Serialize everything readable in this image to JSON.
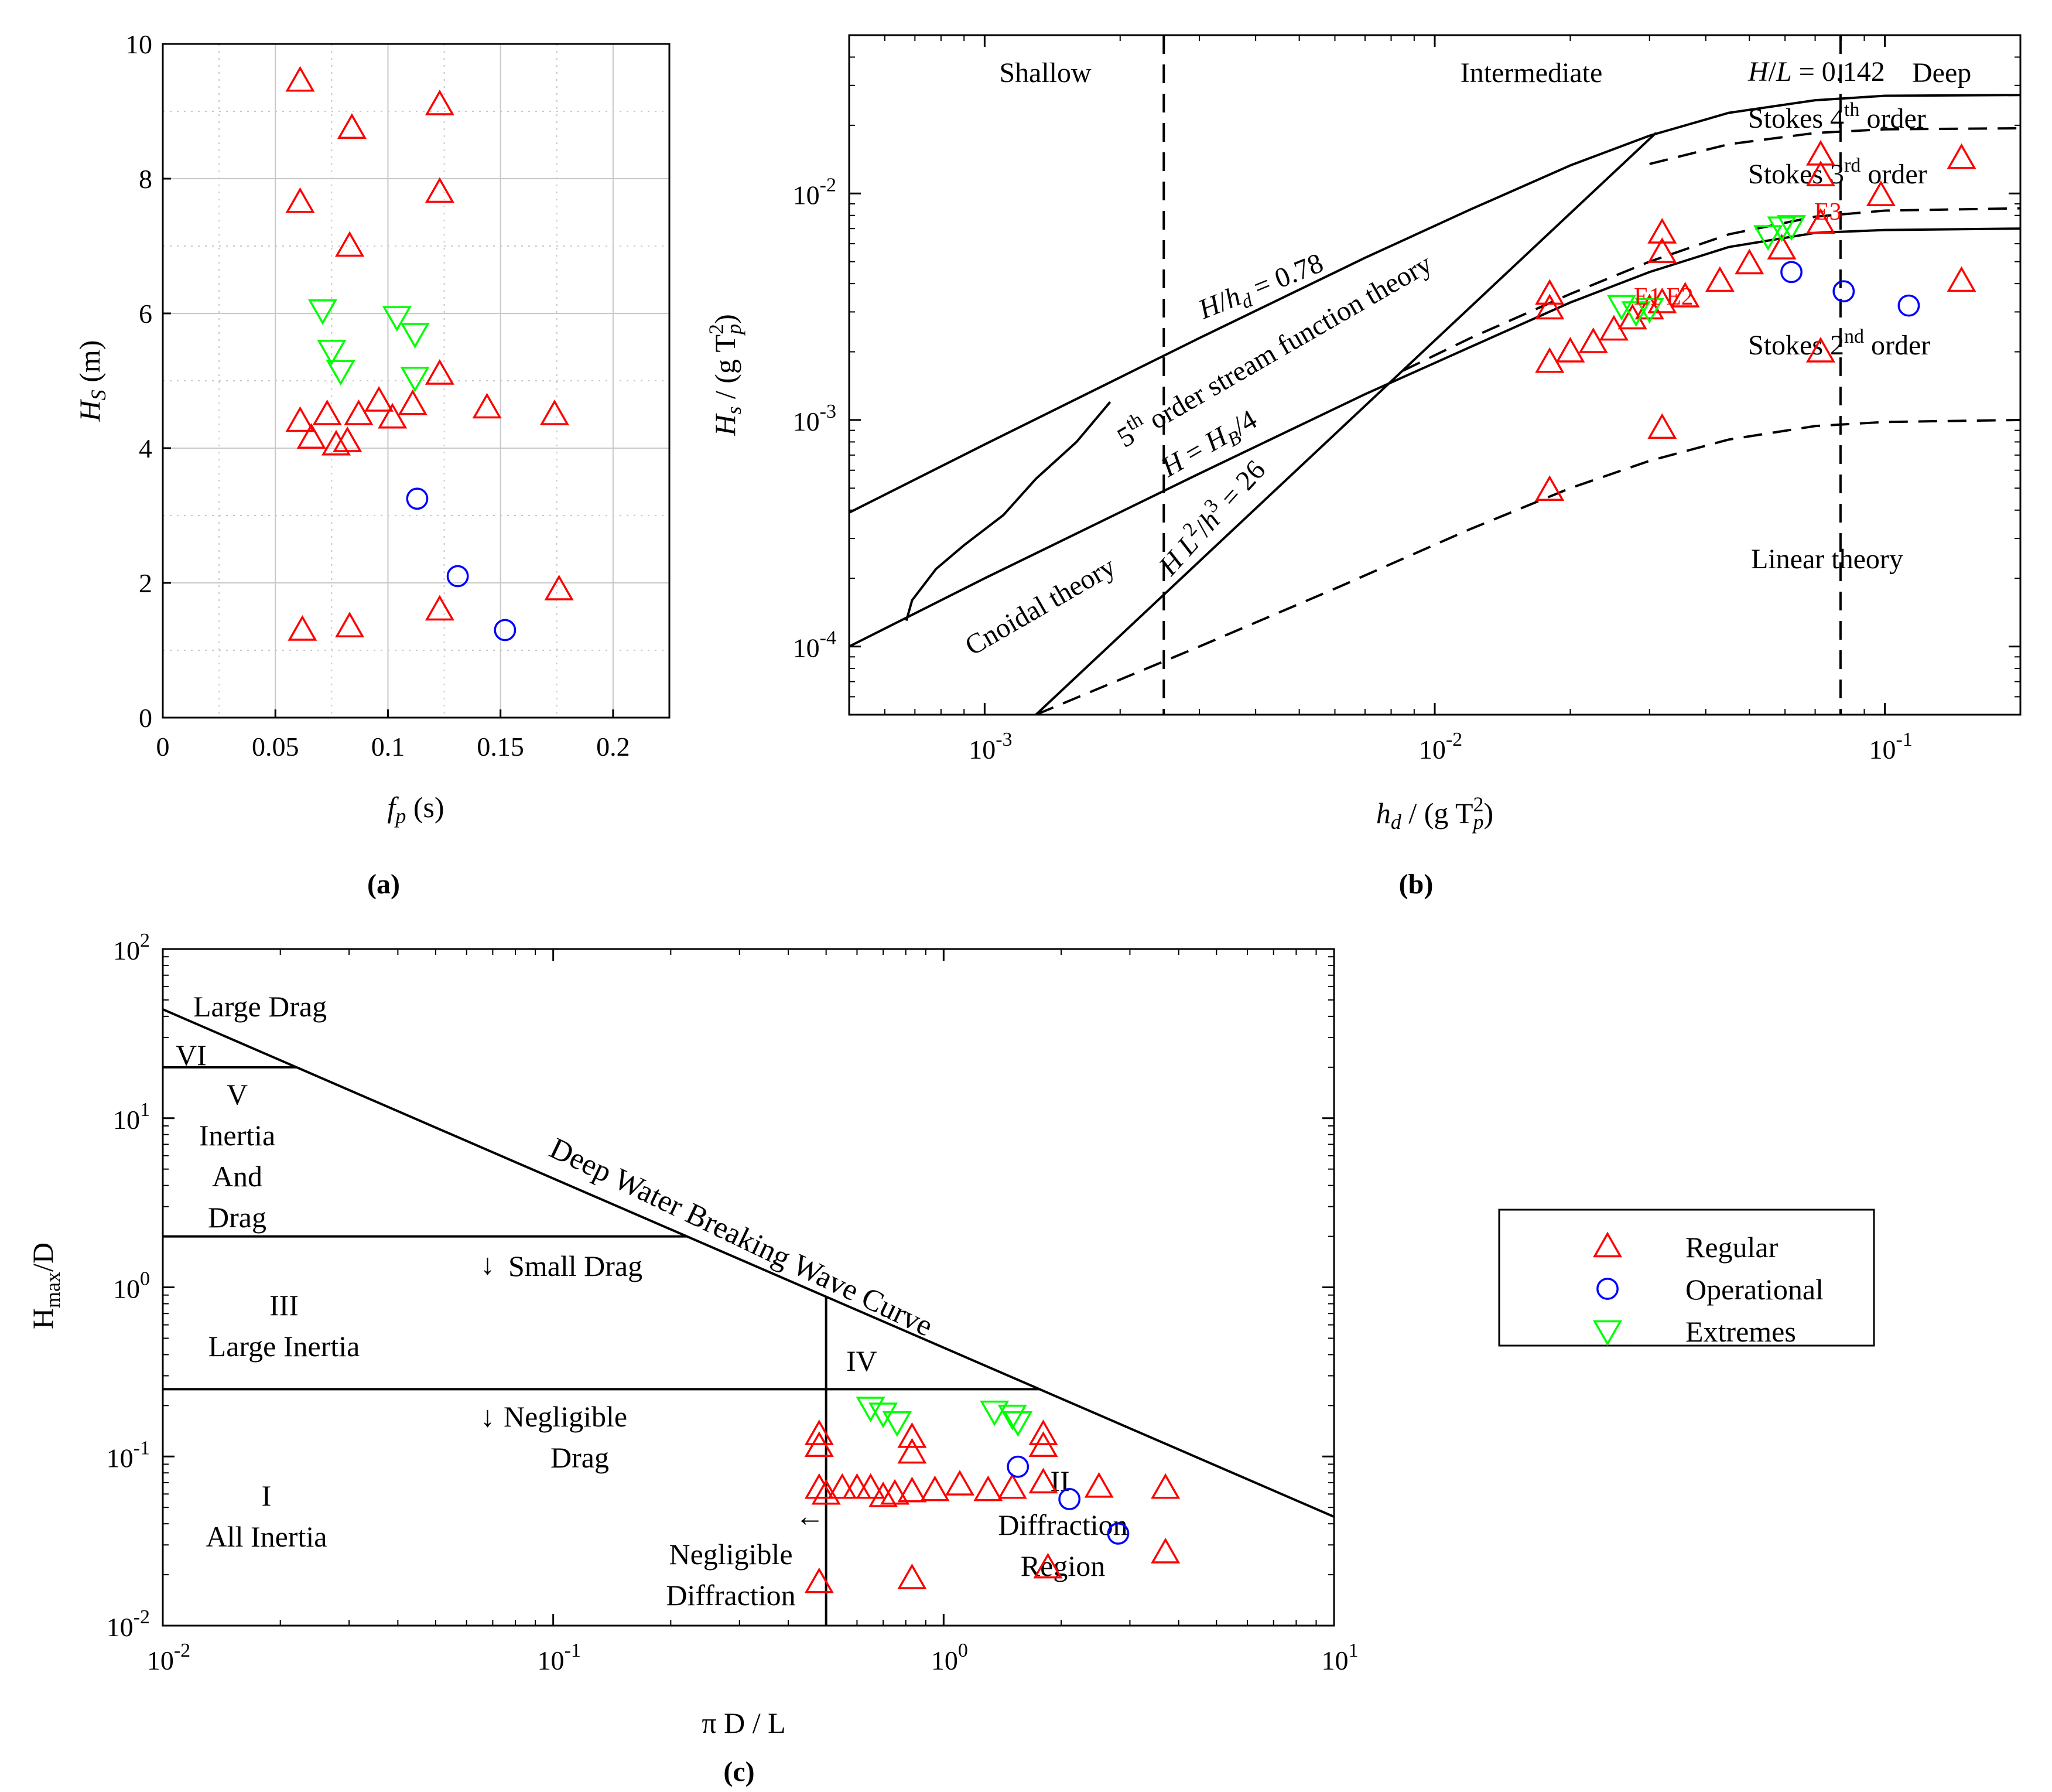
{
  "colors": {
    "regular": "#ff0000",
    "operational": "#0000ff",
    "extremes": "#00ff00",
    "axis": "#000000",
    "grid": "#c8c8c8"
  },
  "legend": {
    "placement": "right-middle",
    "entries": [
      {
        "label": "Regular",
        "marker": "triangle-up",
        "color": "#ff0000"
      },
      {
        "label": "Operational",
        "marker": "circle",
        "color": "#0000ff"
      },
      {
        "label": "Extremes",
        "marker": "triangle-down",
        "color": "#00ff00"
      }
    ]
  },
  "chart_data": [
    {
      "panel": "(a)",
      "type": "scatter",
      "xlabel": {
        "main": "f",
        "sub": "p",
        "rest": " (s)"
      },
      "ylabel": {
        "main": "H",
        "sub": "S",
        "rest": " (m)"
      },
      "xlim": [
        0,
        0.225
      ],
      "ylim": [
        0,
        10
      ],
      "xticks": [
        0,
        0.05,
        0.1,
        0.15,
        0.2
      ],
      "xtick_labels": [
        "0",
        "0.05",
        "0.1",
        "0.15",
        "0.2"
      ],
      "yticks": [
        0,
        2,
        4,
        6,
        8,
        10
      ],
      "ytick_labels": [
        "0",
        "2",
        "4",
        "6",
        "8",
        "10"
      ],
      "grid": true,
      "series": [
        {
          "name": "Regular",
          "marker": "triangle-up",
          "color": "#ff0000",
          "points": [
            [
              0.061,
              9.45
            ],
            [
              0.084,
              8.75
            ],
            [
              0.123,
              9.1
            ],
            [
              0.061,
              7.65
            ],
            [
              0.123,
              7.8
            ],
            [
              0.083,
              7.0
            ],
            [
              0.061,
              4.4
            ],
            [
              0.066,
              4.15
            ],
            [
              0.073,
              4.5
            ],
            [
              0.077,
              4.05
            ],
            [
              0.082,
              4.1
            ],
            [
              0.087,
              4.5
            ],
            [
              0.096,
              4.7
            ],
            [
              0.102,
              4.45
            ],
            [
              0.111,
              4.65
            ],
            [
              0.123,
              5.1
            ],
            [
              0.144,
              4.6
            ],
            [
              0.174,
              4.5
            ],
            [
              0.062,
              1.3
            ],
            [
              0.083,
              1.35
            ],
            [
              0.123,
              1.6
            ],
            [
              0.176,
              1.9
            ]
          ]
        },
        {
          "name": "Operational",
          "marker": "circle",
          "color": "#0000ff",
          "points": [
            [
              0.113,
              3.25
            ],
            [
              0.131,
              2.1
            ],
            [
              0.152,
              1.3
            ]
          ]
        },
        {
          "name": "Extremes",
          "marker": "triangle-down",
          "color": "#00ff00",
          "points": [
            [
              0.071,
              6.05
            ],
            [
              0.075,
              5.45
            ],
            [
              0.079,
              5.15
            ],
            [
              0.104,
              5.95
            ],
            [
              0.112,
              5.7
            ],
            [
              0.112,
              5.05
            ]
          ]
        }
      ]
    },
    {
      "panel": "(b)",
      "type": "scatter",
      "xscale": "log",
      "yscale": "log",
      "xlabel": {
        "a": "h",
        "a_sub": "d",
        "b": " / (g T",
        "b_sup": "2",
        "b_sub": "p",
        "c": ")"
      },
      "ylabel": {
        "a": "H",
        "a_sub": "s",
        "b": " / (g T",
        "b_sup": "2",
        "b_sub": "p",
        "c": ")"
      },
      "xlim": [
        0.0005,
        0.2
      ],
      "ylim": [
        5e-05,
        0.05
      ],
      "xticks": [
        0.001,
        0.01,
        0.1
      ],
      "xtick_labels": [
        {
          "base": "10",
          "exp": "-3"
        },
        {
          "base": "10",
          "exp": "-2"
        },
        {
          "base": "10",
          "exp": "-1"
        }
      ],
      "yticks": [
        0.0001,
        0.001,
        0.01
      ],
      "ytick_labels": [
        {
          "base": "10",
          "exp": "-4"
        },
        {
          "base": "10",
          "exp": "-3"
        },
        {
          "base": "10",
          "exp": "-2"
        }
      ],
      "region_labels": {
        "shallow": "Shallow",
        "intermediate": "Intermediate",
        "deep": "Deep"
      },
      "annotations": {
        "hl_a": "H",
        "hl_b": "/",
        "hl_c": "L",
        "hl_d": " = 0.142",
        "stokes4_a": "Stokes 4",
        "stokes4_sup": "th",
        "stokes4_b": " order",
        "stokes3_a": "Stokes 3",
        "stokes3_sup": "rd",
        "stokes3_b": " order",
        "stokes2_a": "Stokes 2",
        "stokes2_sup": "nd",
        "stokes2_b": " order",
        "linear": "Linear theory",
        "cnoidal": "Cnoidal theory",
        "hhd_a": "H",
        "hhd_b": "/",
        "hhd_c": "h",
        "hhd_sub": "d",
        "hhd_d": " = 0.78",
        "fifth_a": "5",
        "fifth_sup": "th",
        "fifth_b": " order stream function theory",
        "hhb_a": "H",
        "hhb_b": " = ",
        "hhb_c": "H",
        "hhb_sub": "B",
        "hhb_d": "/4",
        "ur_a": "H L",
        "ur_sup1": "2",
        "ur_b": "/",
        "ur_c": "h",
        "ur_sup2": "3",
        "ur_d": " = 26",
        "e2": "E2",
        "e3": "E3",
        "e1": "E1"
      },
      "series": [
        {
          "name": "Regular",
          "marker": "triangle-up",
          "color": "#ff0000",
          "points": [
            [
              0.018,
              0.0036
            ],
            [
              0.018,
              0.0031
            ],
            [
              0.018,
              0.0018
            ],
            [
              0.02,
              0.002
            ],
            [
              0.0225,
              0.0022
            ],
            [
              0.025,
              0.0025
            ],
            [
              0.0275,
              0.0028
            ],
            [
              0.03,
              0.0031
            ],
            [
              0.032,
              0.0033
            ],
            [
              0.032,
              0.0067
            ],
            [
              0.032,
              0.0055
            ],
            [
              0.036,
              0.0035
            ],
            [
              0.043,
              0.0041
            ],
            [
              0.05,
              0.0049
            ],
            [
              0.059,
              0.0057
            ],
            [
              0.072,
              0.0148
            ],
            [
              0.072,
              0.012
            ],
            [
              0.072,
              0.0074
            ],
            [
              0.072,
              0.002
            ],
            [
              0.098,
              0.0098
            ],
            [
              0.148,
              0.0143
            ],
            [
              0.148,
              0.0041
            ],
            [
              0.032,
              0.00092
            ],
            [
              0.018,
              0.00049
            ]
          ]
        },
        {
          "name": "Operational",
          "marker": "circle",
          "color": "#0000ff",
          "points": [
            [
              0.062,
              0.0045
            ],
            [
              0.081,
              0.0037
            ],
            [
              0.113,
              0.0032
            ]
          ]
        },
        {
          "name": "Extremes",
          "marker": "triangle-down",
          "color": "#00ff00",
          "points": [
            [
              0.026,
              0.0032
            ],
            [
              0.028,
              0.003
            ],
            [
              0.03,
              0.0031
            ],
            [
              0.055,
              0.0065
            ],
            [
              0.059,
              0.0071
            ],
            [
              0.062,
              0.0072
            ]
          ]
        }
      ]
    },
    {
      "panel": "(c)",
      "type": "scatter",
      "xscale": "log",
      "yscale": "log",
      "xlabel": "π D / L",
      "ylabel": {
        "main": "H",
        "sub": "max",
        "rest": "/D"
      },
      "xlim": [
        0.01,
        10
      ],
      "ylim": [
        0.01,
        100
      ],
      "xticks": [
        0.01,
        0.1,
        1,
        10
      ],
      "xtick_labels": [
        {
          "base": "10",
          "exp": "-2"
        },
        {
          "base": "10",
          "exp": "-1"
        },
        {
          "base": "10",
          "exp": "0"
        },
        {
          "base": "10",
          "exp": "1"
        }
      ],
      "yticks": [
        0.01,
        0.1,
        1,
        10,
        100
      ],
      "ytick_labels": [
        {
          "base": "10",
          "exp": "-2"
        },
        {
          "base": "10",
          "exp": "-1"
        },
        {
          "base": "10",
          "exp": "0"
        },
        {
          "base": "10",
          "exp": "1"
        },
        {
          "base": "10",
          "exp": "2"
        }
      ],
      "region_labels": {
        "large_drag": "Large Drag",
        "vi": "VI",
        "v": "V",
        "v_l1": "Inertia",
        "v_l2": "And",
        "v_l3": "Drag",
        "iii": "III",
        "iii_l": "Large Inertia",
        "small_drag": "Small Drag",
        "iv": "IV",
        "neg_drag_1": "Negligible",
        "neg_drag_2": "Drag",
        "i": "I",
        "i_l": "All Inertia",
        "neg_diff_1": "Negligible",
        "neg_diff_2": "Diffraction",
        "ii": "II",
        "ii_l1": "Diffraction",
        "ii_l2": "Region",
        "breaking": "Deep Water Breaking Wave Curve",
        "arrow_down": "↓",
        "arrow_left": "←"
      },
      "series": [
        {
          "name": "Regular",
          "marker": "triangle-up",
          "color": "#ff0000",
          "points": [
            [
              0.48,
              0.135
            ],
            [
              0.48,
              0.115
            ],
            [
              0.48,
              0.065
            ],
            [
              0.5,
              0.06
            ],
            [
              0.55,
              0.065
            ],
            [
              0.6,
              0.065
            ],
            [
              0.65,
              0.065
            ],
            [
              0.7,
              0.058
            ],
            [
              0.75,
              0.06
            ],
            [
              0.83,
              0.13
            ],
            [
              0.83,
              0.105
            ],
            [
              0.83,
              0.062
            ],
            [
              0.95,
              0.063
            ],
            [
              1.1,
              0.068
            ],
            [
              1.3,
              0.063
            ],
            [
              1.5,
              0.065
            ],
            [
              1.8,
              0.135
            ],
            [
              1.8,
              0.115
            ],
            [
              1.8,
              0.07
            ],
            [
              2.5,
              0.066
            ],
            [
              3.7,
              0.065
            ],
            [
              3.7,
              0.027
            ],
            [
              0.48,
              0.018
            ],
            [
              0.83,
              0.019
            ],
            [
              1.85,
              0.022
            ]
          ]
        },
        {
          "name": "Operational",
          "marker": "circle",
          "color": "#0000ff",
          "points": [
            [
              1.55,
              0.087
            ],
            [
              2.1,
              0.056
            ],
            [
              2.8,
              0.035
            ]
          ]
        },
        {
          "name": "Extremes",
          "marker": "triangle-down",
          "color": "#00ff00",
          "points": [
            [
              0.65,
              0.195
            ],
            [
              0.7,
              0.18
            ],
            [
              0.76,
              0.16
            ],
            [
              1.35,
              0.185
            ],
            [
              1.5,
              0.175
            ],
            [
              1.55,
              0.16
            ]
          ]
        }
      ]
    }
  ]
}
